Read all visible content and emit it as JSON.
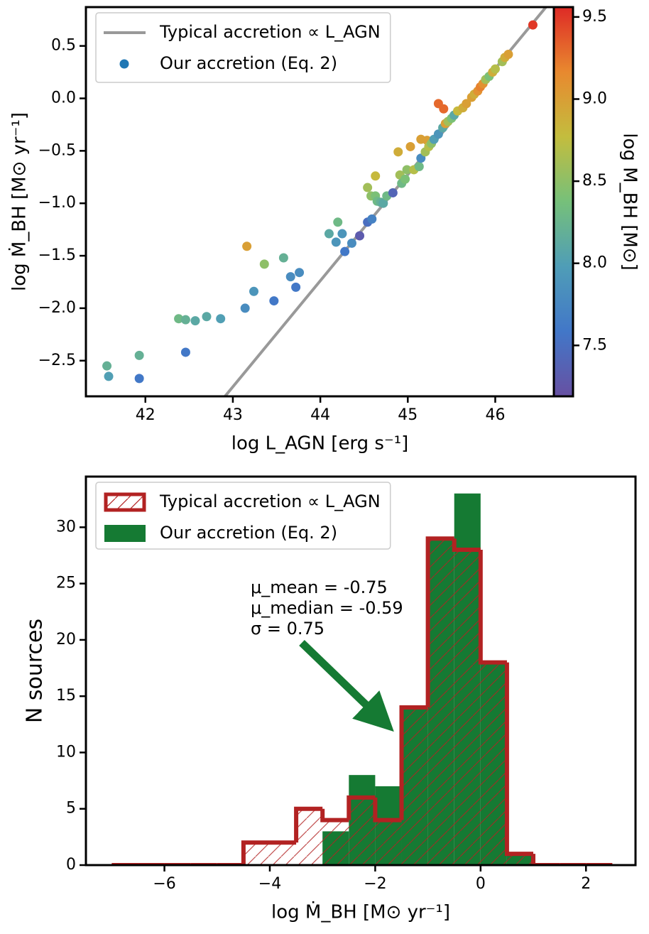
{
  "chart_data": [
    {
      "type": "scatter",
      "xlabel": "log L_AGN [erg s⁻¹]",
      "ylabel": "log Ṁ_BH [M⊙ yr⁻¹]",
      "xlim": [
        41.32,
        46.67
      ],
      "ylim": [
        -2.84,
        0.87
      ],
      "xticks": [
        42,
        43,
        44,
        45,
        46
      ],
      "yticks": [
        {
          "value": -2.5,
          "label": "−2.5"
        },
        {
          "value": -2.0,
          "label": "−2.0"
        },
        {
          "value": -1.5,
          "label": "−1.5"
        },
        {
          "value": -1.0,
          "label": "−1.0"
        },
        {
          "value": -0.5,
          "label": "−0.5"
        },
        {
          "value": 0.0,
          "label": "0.0"
        },
        0.5
      ],
      "legend": "upper left",
      "colorbar": {
        "label": "log M_BH [M⊙]",
        "lim": [
          7.19,
          9.56
        ],
        "ticks": [
          7.5,
          {
            "value": 8.0,
            "label": "8.0"
          },
          8.5,
          {
            "value": 9.0,
            "label": "9.0"
          },
          9.5
        ],
        "colormap": [
          "#6750a2",
          "#4277c8",
          "#4f9db7",
          "#76c07a",
          "#c3bd3e",
          "#e8892f",
          "#de2a26"
        ]
      },
      "series": [
        {
          "name": "Typical accretion ∝ L_AGN",
          "type": "line",
          "color": "#999999",
          "x": [
            42.91,
            46.58
          ],
          "values": [
            -2.84,
            0.87
          ]
        },
        {
          "name": "Our accretion (Eq. 2)",
          "type": "scatter",
          "color": "#1f77b4",
          "x": [
            41.56,
            41.58,
            41.93,
            41.93,
            42.38,
            42.46,
            42.46,
            42.57,
            42.7,
            42.86,
            43.14,
            43.16,
            43.24,
            43.36,
            43.47,
            43.58,
            43.66,
            43.72,
            43.76,
            44.1,
            44.2,
            44.18,
            44.25,
            44.28,
            44.36,
            44.45,
            44.54,
            44.58,
            44.54,
            44.59,
            44.63,
            44.65,
            44.69,
            44.72,
            44.76,
            44.63,
            44.83,
            44.89,
            44.91,
            44.93,
            44.97,
            44.99,
            45.03,
            45.07,
            45.13,
            45.15,
            45.15,
            45.22,
            45.2,
            45.24,
            45.27,
            45.3,
            45.35,
            45.4,
            45.35,
            45.41,
            45.43,
            45.46,
            45.5,
            45.53,
            45.57,
            45.63,
            45.67,
            45.73,
            45.76,
            45.8,
            45.83,
            45.86,
            45.89,
            45.93,
            45.97,
            46.0,
            46.08,
            46.11,
            46.15,
            46.43
          ],
          "values": [
            -2.55,
            -2.65,
            -2.45,
            -2.67,
            -2.1,
            -2.11,
            -2.42,
            -2.12,
            -2.08,
            -2.1,
            -2.0,
            -1.41,
            -1.84,
            -1.58,
            -1.93,
            -1.52,
            -1.7,
            -1.8,
            -1.66,
            -1.29,
            -1.18,
            -1.37,
            -1.29,
            -1.46,
            -1.38,
            -1.31,
            -0.85,
            -0.93,
            -1.18,
            -1.15,
            -0.93,
            -0.98,
            -0.99,
            -1.0,
            -0.93,
            -0.74,
            -0.9,
            -0.51,
            -0.73,
            -0.81,
            -0.77,
            -0.68,
            -0.46,
            -0.68,
            -0.65,
            -0.57,
            -0.39,
            -0.4,
            -0.51,
            -0.46,
            -0.43,
            -0.39,
            -0.34,
            -0.28,
            -0.05,
            -0.1,
            -0.24,
            -0.22,
            -0.19,
            -0.16,
            -0.12,
            -0.09,
            -0.05,
            0.01,
            0.04,
            0.07,
            0.11,
            0.14,
            0.18,
            0.21,
            0.25,
            0.28,
            0.35,
            0.39,
            0.42,
            0.7
          ],
          "c": [
            8.2,
            8.0,
            8.2,
            7.6,
            8.3,
            8.2,
            7.6,
            8.1,
            8.1,
            8.0,
            7.8,
            9.0,
            7.9,
            8.5,
            7.6,
            8.2,
            7.8,
            7.6,
            7.8,
            8.1,
            8.3,
            7.9,
            7.9,
            7.6,
            7.8,
            7.3,
            8.6,
            8.5,
            7.5,
            7.7,
            8.4,
            8.3,
            8.2,
            8.1,
            8.3,
            8.8,
            7.4,
            8.9,
            8.6,
            8.3,
            8.4,
            8.5,
            9.0,
            8.7,
            8.3,
            7.8,
            9.0,
            9.0,
            8.6,
            8.7,
            8.5,
            8.0,
            7.9,
            8.1,
            9.3,
            9.3,
            9.0,
            8.6,
            8.4,
            8.1,
            8.8,
            8.9,
            9.0,
            9.0,
            8.9,
            9.1,
            9.2,
            9.1,
            8.6,
            8.4,
            8.9,
            8.7,
            8.6,
            8.9,
            9.0,
            9.5
          ]
        }
      ]
    },
    {
      "type": "histogram",
      "xlabel": "log Ṁ_BH [M⊙ yr⁻¹]",
      "ylabel": "N sources",
      "xlim": [
        -7.49,
        2.94
      ],
      "ylim": [
        0,
        34.5
      ],
      "xticks": [
        {
          "value": -6,
          "label": "−6"
        },
        {
          "value": -4,
          "label": "−4"
        },
        {
          "value": -2,
          "label": "−2"
        },
        0,
        2
      ],
      "yticks": [
        0,
        5,
        10,
        15,
        20,
        25,
        30
      ],
      "legend": "upper left",
      "bins": [
        -7,
        -6.5,
        -6,
        -5.5,
        -5,
        -4.5,
        -4,
        -3.5,
        -3,
        -2.5,
        -2,
        -1.5,
        -1,
        -0.5,
        0,
        0.5,
        1,
        1.5,
        2,
        2.5
      ],
      "series": [
        {
          "name": "Typical accretion ∝ L_AGN",
          "style": "step-hatched",
          "color": "#b22222",
          "values": [
            0,
            0,
            0,
            0,
            0,
            2,
            2,
            5,
            4,
            6,
            4,
            14,
            29,
            28,
            18,
            1,
            0,
            0,
            0
          ]
        },
        {
          "name": "Our accretion (Eq. 2)",
          "style": "filled",
          "color": "#157a33",
          "values": [
            0,
            0,
            0,
            0,
            0,
            0,
            0,
            0,
            3,
            8,
            7,
            14,
            29,
            33,
            18,
            1,
            0,
            0,
            0
          ]
        }
      ],
      "annotations": [
        "μ_mean = -0.75",
        "μ_median = -0.59",
        "σ = 0.75"
      ]
    }
  ]
}
